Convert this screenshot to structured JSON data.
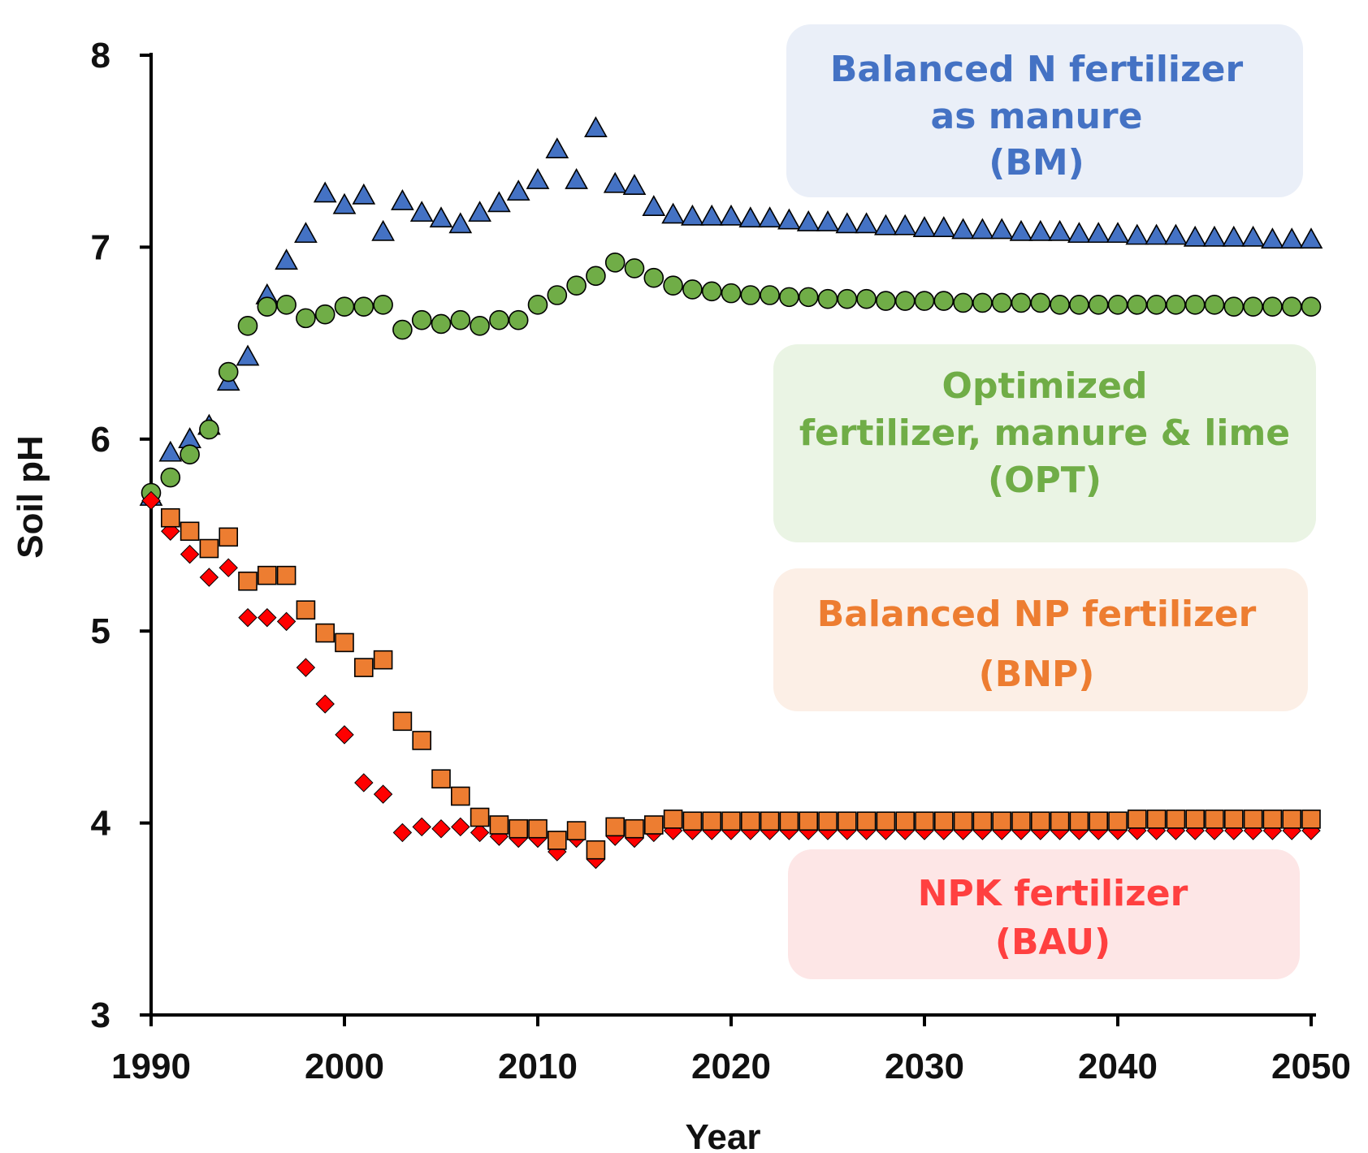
{
  "chart_data": {
    "type": "scatter",
    "xlabel": "Year",
    "ylabel": "Soil pH",
    "xlim": [
      1990,
      2050
    ],
    "ylim": [
      3,
      8
    ],
    "xticks": [
      "1990",
      "2000",
      "2010",
      "2020",
      "2030",
      "2040",
      "2050"
    ],
    "yticks": [
      "3",
      "4",
      "5",
      "6",
      "7",
      "8"
    ],
    "grid": false,
    "series": [
      {
        "key": "BM",
        "marker": "triangle",
        "color": "#4472C4",
        "x": [
          1990,
          1991,
          1992,
          1993,
          1994,
          1995,
          1996,
          1997,
          1998,
          1999,
          2000,
          2001,
          2002,
          2003,
          2004,
          2005,
          2006,
          2007,
          2008,
          2009,
          2010,
          2011,
          2012,
          2013,
          2014,
          2015,
          2016,
          2017,
          2018,
          2019,
          2020,
          2021,
          2022,
          2023,
          2024,
          2025,
          2026,
          2027,
          2028,
          2029,
          2030,
          2031,
          2032,
          2033,
          2034,
          2035,
          2036,
          2037,
          2038,
          2039,
          2040,
          2041,
          2042,
          2043,
          2044,
          2045,
          2046,
          2047,
          2048,
          2049,
          2050
        ],
        "y": [
          5.7,
          5.93,
          6.0,
          6.07,
          6.3,
          6.43,
          6.75,
          6.93,
          7.07,
          7.28,
          7.22,
          7.27,
          7.08,
          7.24,
          7.18,
          7.15,
          7.12,
          7.18,
          7.23,
          7.29,
          7.35,
          7.51,
          7.35,
          7.62,
          7.33,
          7.32,
          7.21,
          7.17,
          7.16,
          7.16,
          7.16,
          7.15,
          7.15,
          7.14,
          7.13,
          7.13,
          7.12,
          7.12,
          7.11,
          7.11,
          7.1,
          7.1,
          7.09,
          7.09,
          7.09,
          7.08,
          7.08,
          7.08,
          7.07,
          7.07,
          7.07,
          7.06,
          7.06,
          7.06,
          7.05,
          7.05,
          7.05,
          7.05,
          7.04,
          7.04,
          7.04
        ]
      },
      {
        "key": "OPT",
        "marker": "circle",
        "color": "#70AD47",
        "x": [
          1990,
          1991,
          1992,
          1993,
          1994,
          1995,
          1996,
          1997,
          1998,
          1999,
          2000,
          2001,
          2002,
          2003,
          2004,
          2005,
          2006,
          2007,
          2008,
          2009,
          2010,
          2011,
          2012,
          2013,
          2014,
          2015,
          2016,
          2017,
          2018,
          2019,
          2020,
          2021,
          2022,
          2023,
          2024,
          2025,
          2026,
          2027,
          2028,
          2029,
          2030,
          2031,
          2032,
          2033,
          2034,
          2035,
          2036,
          2037,
          2038,
          2039,
          2040,
          2041,
          2042,
          2043,
          2044,
          2045,
          2046,
          2047,
          2048,
          2049,
          2050
        ],
        "y": [
          5.72,
          5.8,
          5.92,
          6.05,
          6.35,
          6.59,
          6.69,
          6.7,
          6.63,
          6.65,
          6.69,
          6.69,
          6.7,
          6.57,
          6.62,
          6.6,
          6.62,
          6.59,
          6.62,
          6.62,
          6.7,
          6.75,
          6.8,
          6.85,
          6.92,
          6.89,
          6.84,
          6.8,
          6.78,
          6.77,
          6.76,
          6.75,
          6.75,
          6.74,
          6.74,
          6.73,
          6.73,
          6.73,
          6.72,
          6.72,
          6.72,
          6.72,
          6.71,
          6.71,
          6.71,
          6.71,
          6.71,
          6.7,
          6.7,
          6.7,
          6.7,
          6.7,
          6.7,
          6.7,
          6.7,
          6.7,
          6.69,
          6.69,
          6.69,
          6.69,
          6.69
        ]
      },
      {
        "key": "BAU",
        "marker": "diamond",
        "color": "#FF0000",
        "x": [
          1990,
          1991,
          1992,
          1993,
          1994,
          1995,
          1996,
          1997,
          1998,
          1999,
          2000,
          2001,
          2002,
          2003,
          2004,
          2005,
          2006,
          2007,
          2008,
          2009,
          2010,
          2011,
          2012,
          2013,
          2014,
          2015,
          2016,
          2017,
          2018,
          2019,
          2020,
          2021,
          2022,
          2023,
          2024,
          2025,
          2026,
          2027,
          2028,
          2029,
          2030,
          2031,
          2032,
          2033,
          2034,
          2035,
          2036,
          2037,
          2038,
          2039,
          2040,
          2041,
          2042,
          2043,
          2044,
          2045,
          2046,
          2047,
          2048,
          2049,
          2050
        ],
        "y": [
          5.68,
          5.52,
          5.4,
          5.28,
          5.33,
          5.07,
          5.07,
          5.05,
          4.81,
          4.62,
          4.46,
          4.21,
          4.15,
          3.95,
          3.98,
          3.97,
          3.98,
          3.95,
          3.93,
          3.92,
          3.92,
          3.85,
          3.92,
          3.81,
          3.93,
          3.92,
          3.95,
          3.96,
          3.96,
          3.96,
          3.96,
          3.96,
          3.96,
          3.96,
          3.96,
          3.96,
          3.96,
          3.96,
          3.96,
          3.96,
          3.96,
          3.96,
          3.96,
          3.96,
          3.96,
          3.96,
          3.96,
          3.96,
          3.96,
          3.96,
          3.96,
          3.96,
          3.96,
          3.96,
          3.96,
          3.96,
          3.96,
          3.96,
          3.96,
          3.96,
          3.96
        ]
      },
      {
        "key": "BNP",
        "marker": "square",
        "color": "#ED7D31",
        "x": [
          1991,
          1992,
          1993,
          1994,
          1995,
          1996,
          1997,
          1998,
          1999,
          2000,
          2001,
          2002,
          2003,
          2004,
          2005,
          2006,
          2007,
          2008,
          2009,
          2010,
          2011,
          2012,
          2013,
          2014,
          2015,
          2016,
          2017,
          2018,
          2019,
          2020,
          2021,
          2022,
          2023,
          2024,
          2025,
          2026,
          2027,
          2028,
          2029,
          2030,
          2031,
          2032,
          2033,
          2034,
          2035,
          2036,
          2037,
          2038,
          2039,
          2040,
          2041,
          2042,
          2043,
          2044,
          2045,
          2046,
          2047,
          2048,
          2049,
          2050
        ],
        "y": [
          5.59,
          5.52,
          5.43,
          5.49,
          5.26,
          5.29,
          5.29,
          5.11,
          4.99,
          4.94,
          4.81,
          4.85,
          4.53,
          4.43,
          4.23,
          4.14,
          4.03,
          3.99,
          3.97,
          3.97,
          3.91,
          3.96,
          3.86,
          3.98,
          3.97,
          3.99,
          4.02,
          4.01,
          4.01,
          4.01,
          4.01,
          4.01,
          4.01,
          4.01,
          4.01,
          4.01,
          4.01,
          4.01,
          4.01,
          4.01,
          4.01,
          4.01,
          4.01,
          4.01,
          4.01,
          4.01,
          4.01,
          4.01,
          4.01,
          4.01,
          4.02,
          4.02,
          4.02,
          4.02,
          4.02,
          4.02,
          4.02,
          4.02,
          4.02,
          4.02
        ]
      }
    ],
    "annotations": [
      {
        "key": "BM",
        "lines": [
          "Balanced N fertilizer",
          "as manure",
          "(BM)"
        ],
        "color": "#4472C4",
        "fill": "#EAEFF8"
      },
      {
        "key": "OPT",
        "lines": [
          "Optimized",
          "fertilizer, manure & lime",
          "(OPT)"
        ],
        "color": "#70AD47",
        "fill": "#EAF4E4"
      },
      {
        "key": "BNP",
        "lines": [
          "Balanced NP fertilizer",
          "(BNP)"
        ],
        "color": "#ED7D31",
        "fill": "#FCEFE6"
      },
      {
        "key": "BAU",
        "lines": [
          "NPK fertilizer",
          "(BAU)"
        ],
        "color": "#FF4040",
        "fill": "#FDE6E6"
      }
    ]
  }
}
